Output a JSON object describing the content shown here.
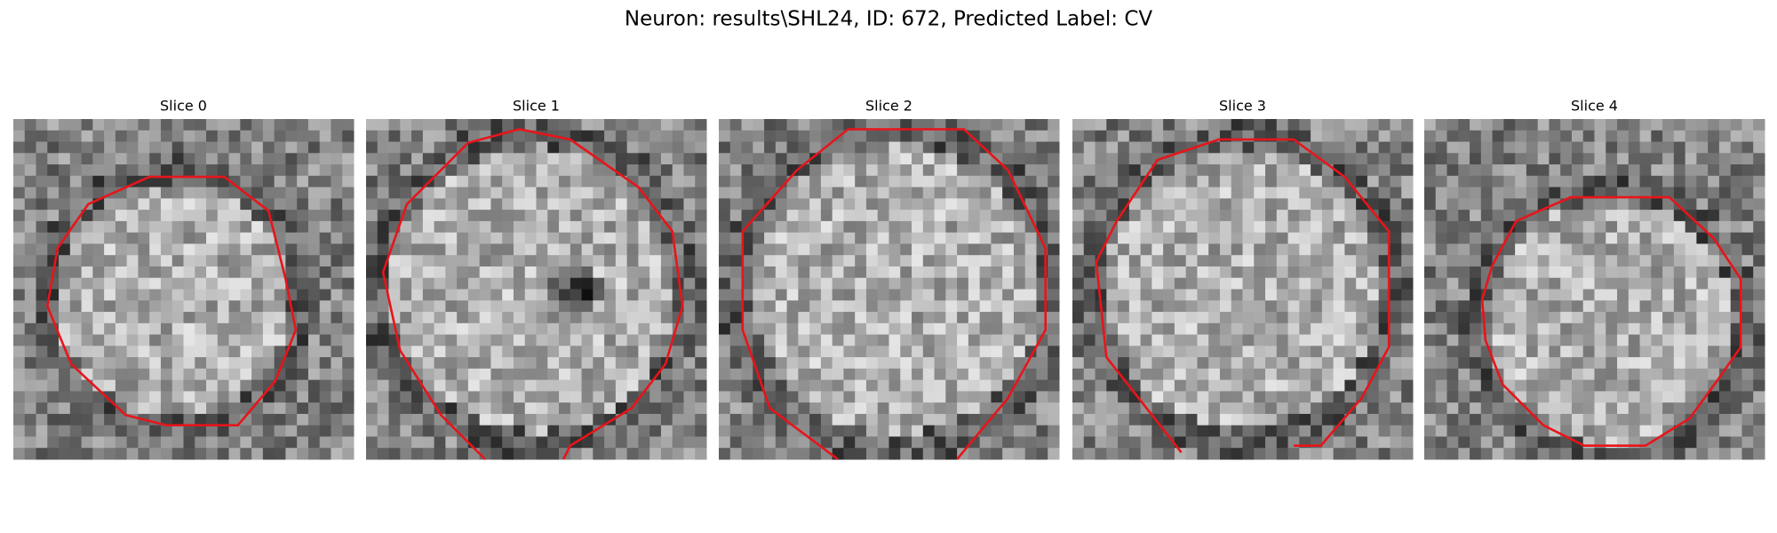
{
  "title": "Neuron: results\\SHL24, ID: 672, Predicted Label: CV",
  "panels": [
    {
      "title": "Slice 0"
    },
    {
      "title": "Slice 1"
    },
    {
      "title": "Slice 2"
    },
    {
      "title": "Slice 3"
    },
    {
      "title": "Slice 4"
    }
  ]
}
